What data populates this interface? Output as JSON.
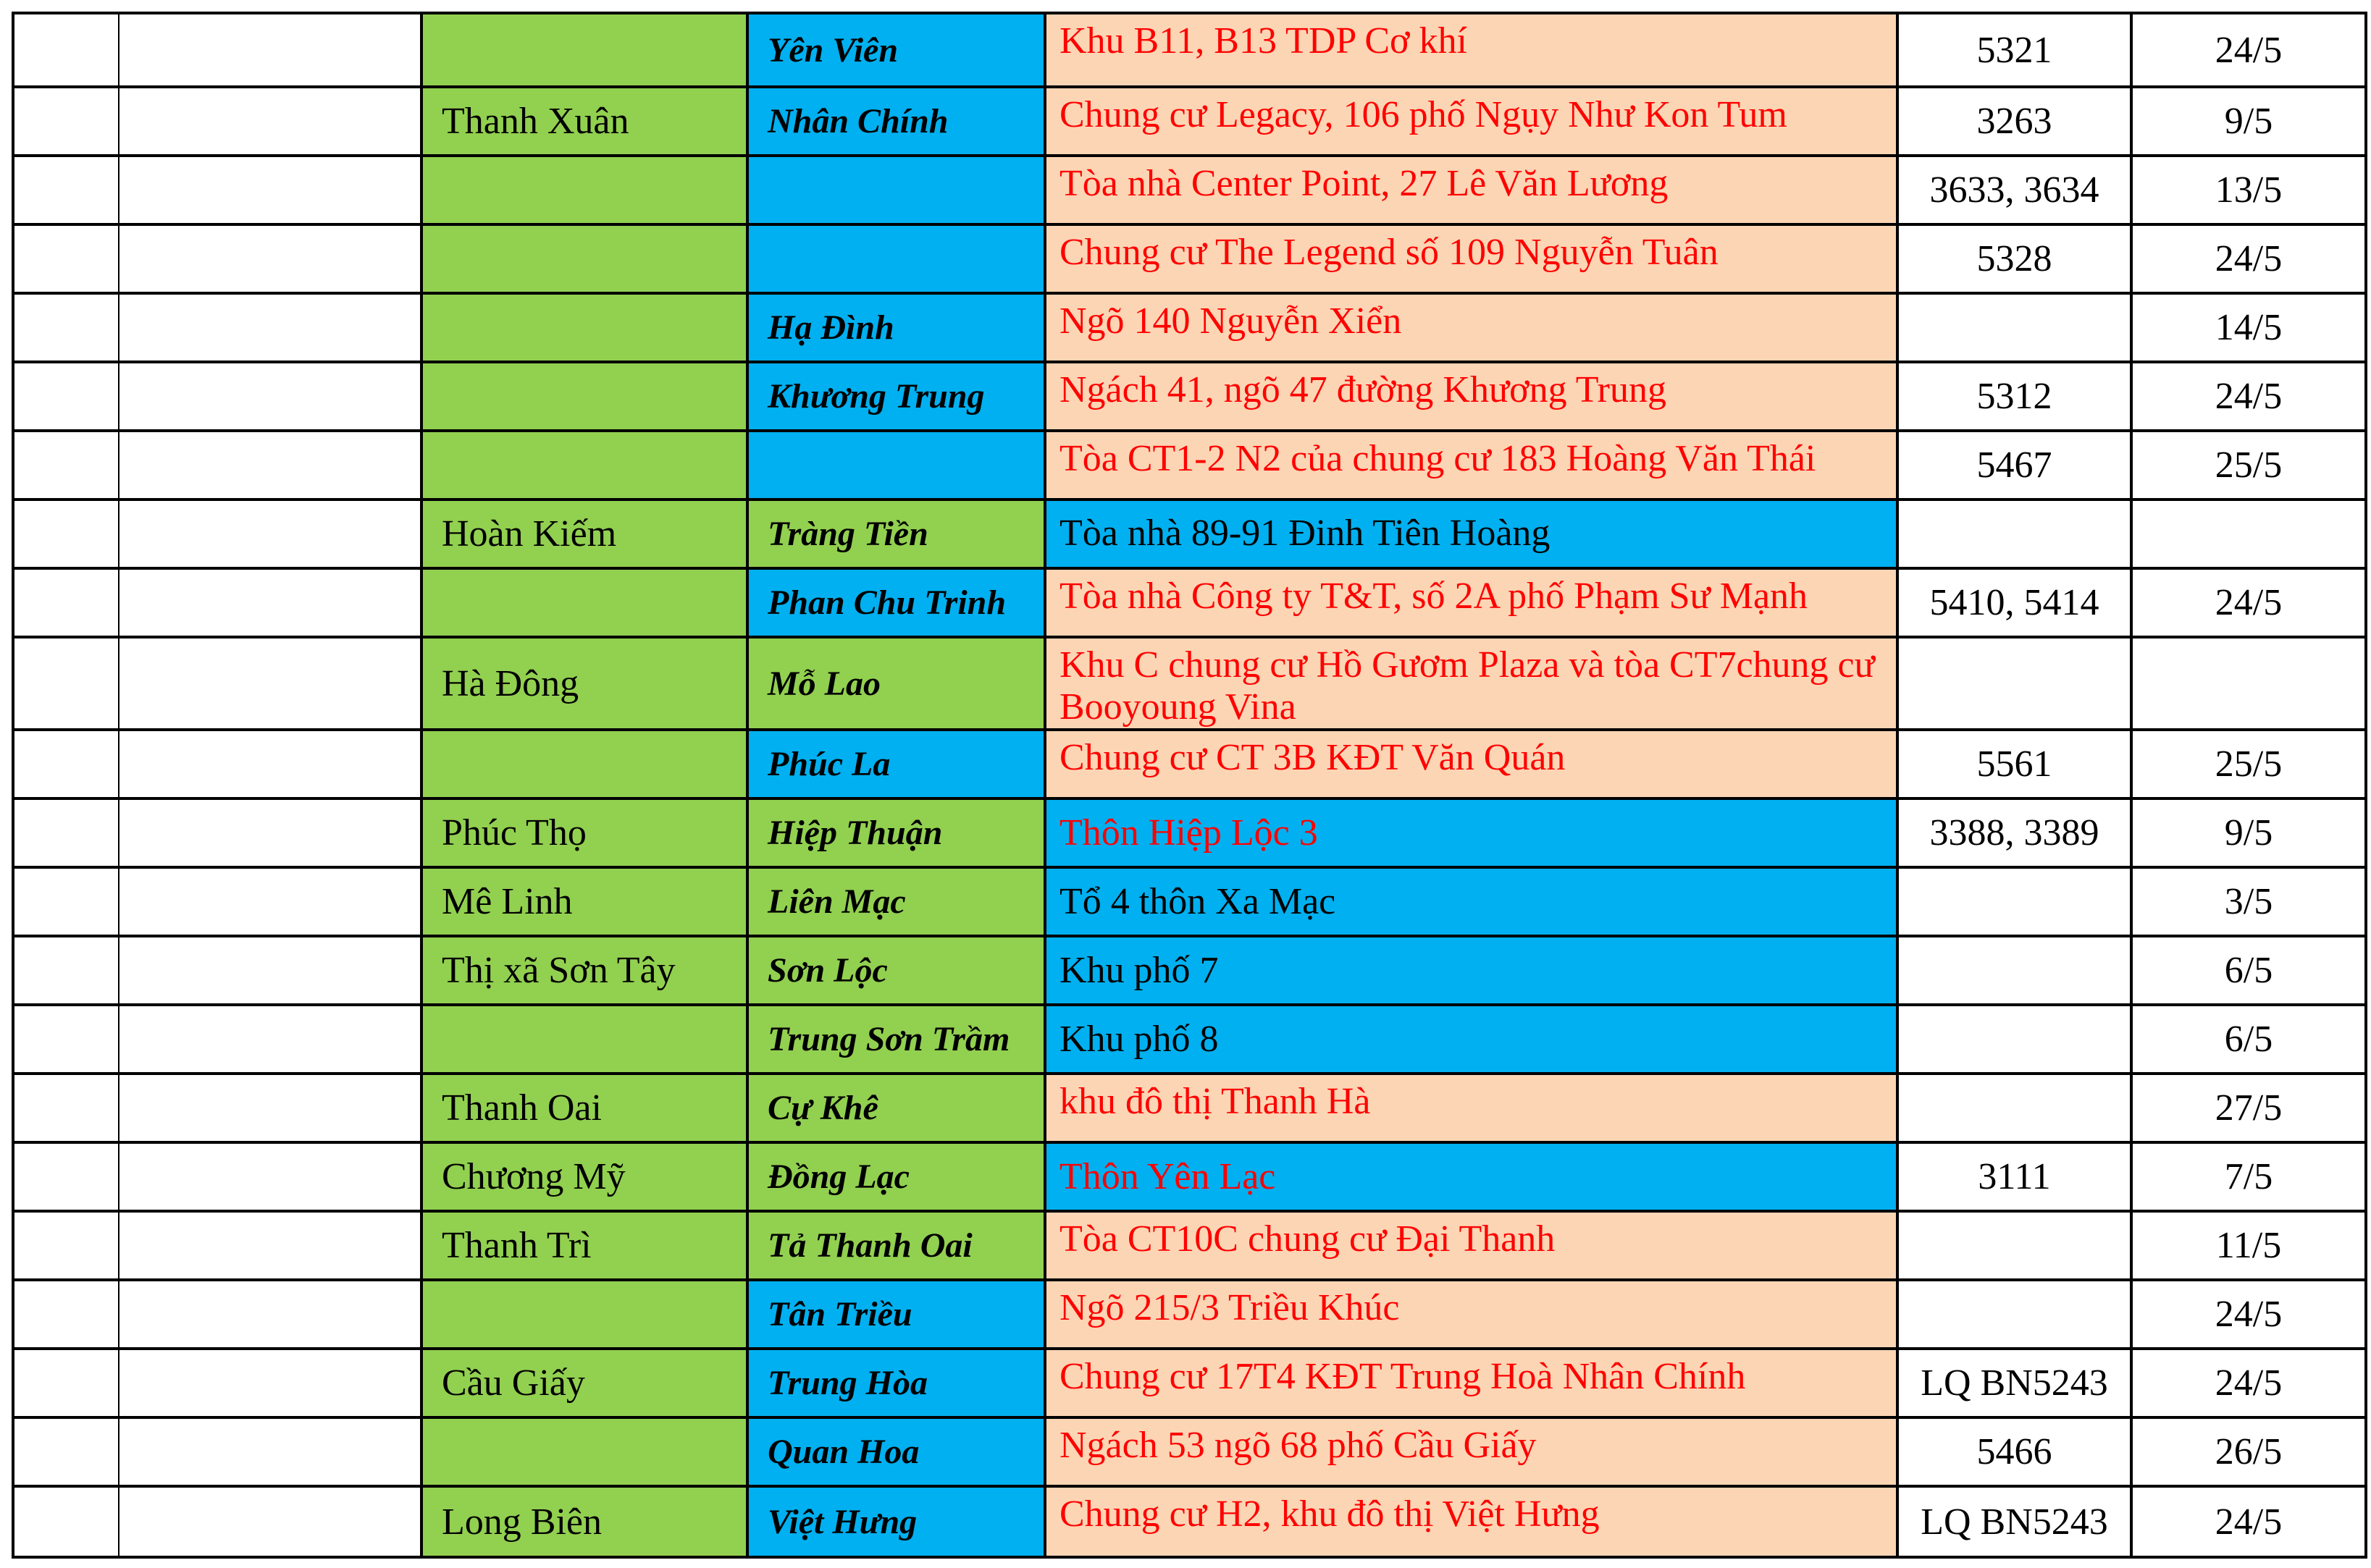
{
  "palette": {
    "cell_green": "#92D050",
    "cell_blue": "#00B0F0",
    "cell_orange": "#FCD5B4",
    "text_red": "#FF0000",
    "text_black": "#000000",
    "border_black": "#000000",
    "page_white": "#FFFFFF"
  },
  "table": {
    "rows": [
      {
        "district": "",
        "ward": "Yên Viên",
        "address": "Khu B11, B13 TDP Cơ khí",
        "code": "5321",
        "date": "24/5"
      },
      {
        "district": "Thanh Xuân",
        "ward": "Nhân Chính",
        "address": "Chung cư Legacy, 106 phố Ngụy Như Kon Tum",
        "code": "3263",
        "date": "9/5"
      },
      {
        "district": "",
        "ward": "",
        "address": "Tòa nhà Center Point, 27 Lê Văn Lương",
        "code": "3633, 3634",
        "date": "13/5"
      },
      {
        "district": "",
        "ward": "",
        "address": "Chung cư The Legend số 109 Nguyễn Tuân",
        "code": "5328",
        "date": "24/5"
      },
      {
        "district": "",
        "ward": "Hạ Đình",
        "address": "Ngõ 140 Nguyễn Xiển",
        "code": "",
        "date": "14/5"
      },
      {
        "district": "",
        "ward": "Khương Trung",
        "address": "Ngách 41, ngõ 47 đường  Khương Trung",
        "code": "5312",
        "date": "24/5"
      },
      {
        "district": "",
        "ward": "",
        "address": "Tòa CT1-2 N2 của chung cư 183 Hoàng Văn Thái",
        "code": "5467",
        "date": "25/5"
      },
      {
        "district": "Hoàn Kiếm",
        "ward": "Tràng Tiền",
        "address": "Tòa nhà 89-91 Đinh Tiên Hoàng",
        "code": "",
        "date": ""
      },
      {
        "district": "",
        "ward": "Phan Chu Trinh",
        "address": "Tòa nhà Công ty T&T, số 2A phố Phạm Sư Mạnh",
        "code": "5410, 5414",
        "date": "24/5"
      },
      {
        "district": "Hà Đông",
        "ward": "Mỗ Lao",
        "address": "Khu C chung cư Hồ Gươm Plaza và tòa CT7chung cư Booyoung Vina",
        "code": "",
        "date": ""
      },
      {
        "district": "",
        "ward": "Phúc La",
        "address": "Chung cư CT 3B KĐT Văn Quán",
        "code": "5561",
        "date": "25/5"
      },
      {
        "district": "Phúc Thọ",
        "ward": "Hiệp Thuận",
        "address": "Thôn Hiệp Lộc 3",
        "code": "3388, 3389",
        "date": "9/5"
      },
      {
        "district": "Mê Linh",
        "ward": "Liên Mạc",
        "address": "Tổ 4 thôn Xa Mạc",
        "code": "",
        "date": "3/5"
      },
      {
        "district": "Thị xã Sơn Tây",
        "ward": "Sơn Lộc",
        "address": "Khu phố 7",
        "code": "",
        "date": "6/5"
      },
      {
        "district": "",
        "ward": "Trung Sơn Trầm",
        "address": "Khu phố 8",
        "code": "",
        "date": "6/5"
      },
      {
        "district": "Thanh Oai",
        "ward": "Cự Khê",
        "address": "khu đô thị Thanh Hà",
        "code": "",
        "date": "27/5"
      },
      {
        "district": "Chương Mỹ",
        "ward": "Đồng Lạc",
        "address": "Thôn Yên Lạc",
        "code": "3111",
        "date": "7/5"
      },
      {
        "district": "Thanh Trì",
        "ward": "Tả Thanh Oai",
        "address": "Tòa CT10C chung cư Đại Thanh",
        "code": "",
        "date": "11/5"
      },
      {
        "district": "",
        "ward": "Tân Triều",
        "address": "Ngõ 215/3 Triều Khúc",
        "code": "",
        "date": "24/5"
      },
      {
        "district": "Cầu Giấy",
        "ward": "Trung Hòa",
        "address": "Chung cư 17T4 KĐT Trung Hoà Nhân Chính",
        "code": "LQ BN5243",
        "date": "24/5"
      },
      {
        "district": "",
        "ward": "Quan Hoa",
        "address": "Ngách 53 ngõ 68 phố Cầu Giấy",
        "code": "5466",
        "date": "26/5"
      },
      {
        "district": "Long Biên",
        "ward": "Việt Hưng",
        "address": "Chung cư H2, khu đô thị Việt Hưng",
        "code": "LQ BN5243",
        "date": "24/5"
      }
    ]
  }
}
